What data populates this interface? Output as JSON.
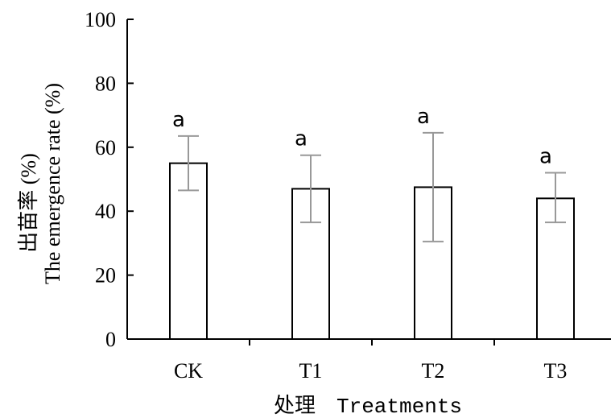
{
  "chart_data": {
    "type": "bar",
    "categories": [
      "CK",
      "T1",
      "T2",
      "T3"
    ],
    "values": [
      55,
      47,
      47.5,
      44
    ],
    "error_low": [
      46.5,
      36.5,
      30.5,
      36.5
    ],
    "error_high": [
      63.5,
      57.5,
      64.5,
      52
    ],
    "significance": [
      "a",
      "a",
      "a",
      "a"
    ],
    "ylim": [
      0,
      100
    ],
    "yticks": [
      0,
      20,
      40,
      60,
      80,
      100
    ],
    "ylabel_cn": "出苗率 (%)",
    "ylabel_en": "The emergence rate (%)",
    "xlabel_cn": "处理",
    "xlabel_en": "Treatments",
    "grid": false,
    "bar_fill": "#ffffff",
    "bar_stroke": "#000000",
    "errorbar_color": "#999999"
  }
}
